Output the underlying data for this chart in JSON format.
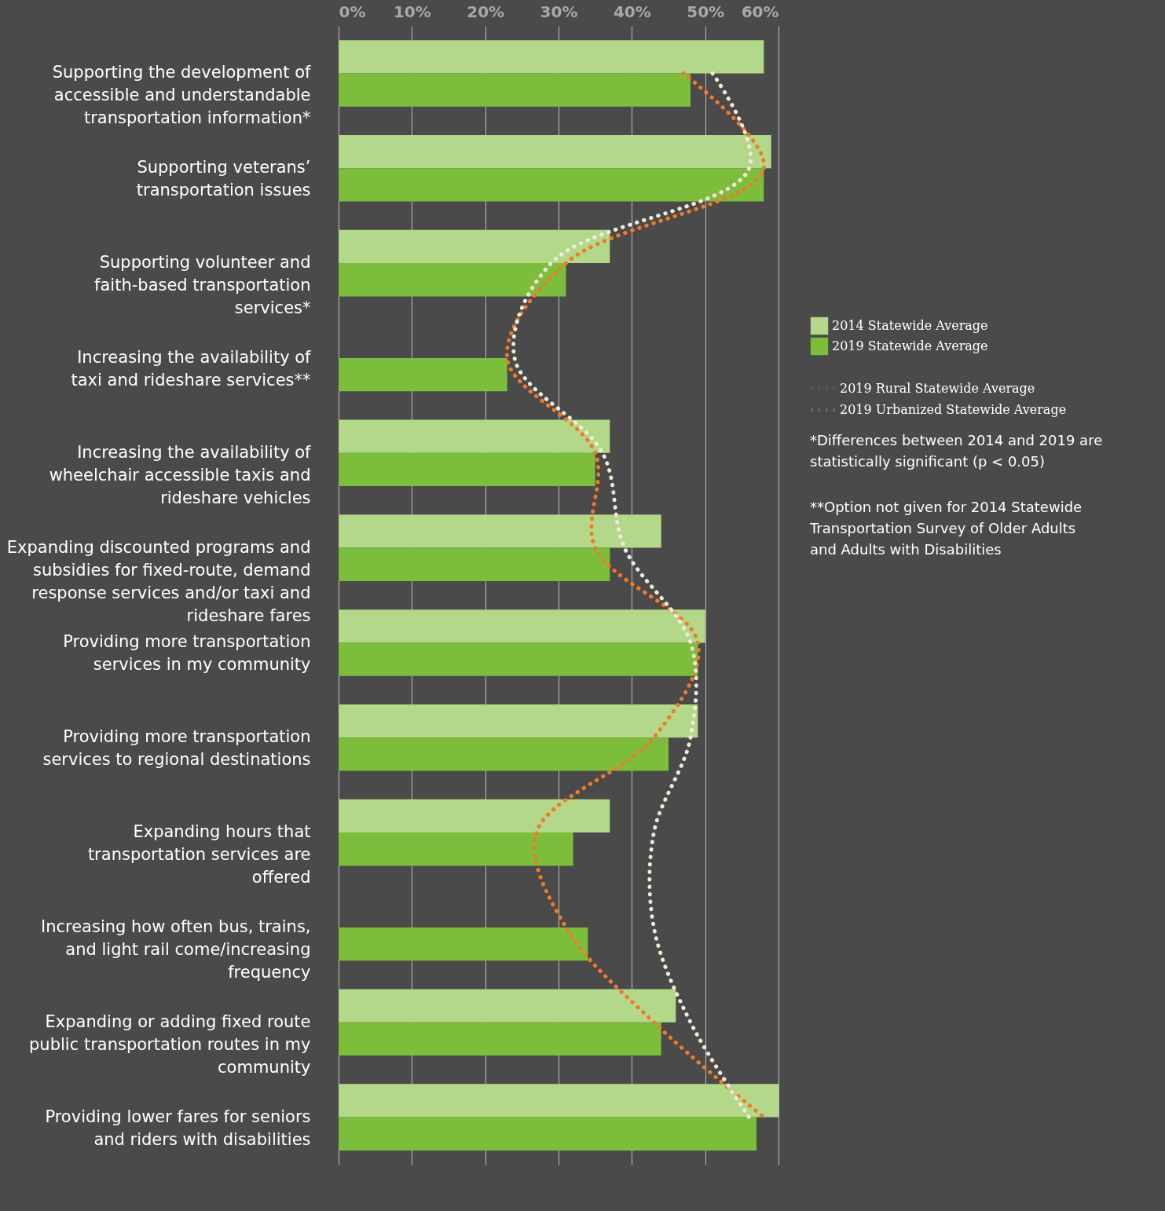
{
  "chart_data": {
    "type": "bar",
    "orientation": "horizontal",
    "categories": [
      "Supporting the development of accessible and understandable transportation information*",
      "Supporting veterans’ transportation issues",
      "Supporting volunteer and faith-based transportation services*",
      "Increasing the availability of taxi and rideshare services**",
      "Increasing the availability of wheelchair accessible taxis and rideshare vehicles",
      "Expanding discounted programs and subsidies for fixed-route, demand response services and/or taxi and rideshare fares",
      "Providing more transportation services in my community",
      "Providing more transportation services to regional destinations",
      "Expanding hours that transportation services are offered",
      "Increasing how often bus, trains, and light rail come/increasing frequency",
      "Expanding or adding fixed route public transportation routes in my community",
      "Providing lower fares for seniors and riders with disabilities"
    ],
    "series": [
      {
        "name": "2014 Statewide Average",
        "color": "#b3d88a",
        "values": [
          58,
          59,
          37,
          null,
          37,
          44,
          50,
          49,
          37,
          null,
          46,
          60
        ]
      },
      {
        "name": "2019 Statewide Average",
        "color": "#7dbd3c",
        "values": [
          48,
          58,
          31,
          23,
          35,
          37,
          49,
          45,
          32,
          34,
          44,
          57
        ]
      },
      {
        "name": "2019 Rural Statewide Average",
        "type": "line",
        "line_style": "dotted",
        "color": "#f07a2a",
        "values": [
          47,
          58,
          31,
          23,
          35,
          35,
          49,
          43,
          27,
          31,
          43,
          58
        ]
      },
      {
        "name": "2019 Urbanized Statewide Average",
        "type": "line",
        "line_style": "dotted",
        "color": "#f3ead8",
        "values": [
          51,
          56,
          29,
          24,
          36,
          39,
          48,
          48,
          43,
          43,
          48,
          56
        ]
      }
    ],
    "xlim": [
      0,
      60
    ],
    "xticks": [
      {
        "value": 0,
        "label": "0%"
      },
      {
        "value": 10,
        "label": "10%"
      },
      {
        "value": 20,
        "label": "20%"
      },
      {
        "value": 30,
        "label": "30%"
      },
      {
        "value": 40,
        "label": "40%"
      },
      {
        "value": 50,
        "label": "50%"
      },
      {
        "value": 60,
        "label": "60%"
      }
    ],
    "grid": "x",
    "legend": "right",
    "annotations": [
      "*Differences between 2014 and 2019 are statistically significant (p < 0.05)",
      "**Option not given for 2014 Statewide Transportation Survey of Older Adults and Adults with Disabilities"
    ]
  }
}
